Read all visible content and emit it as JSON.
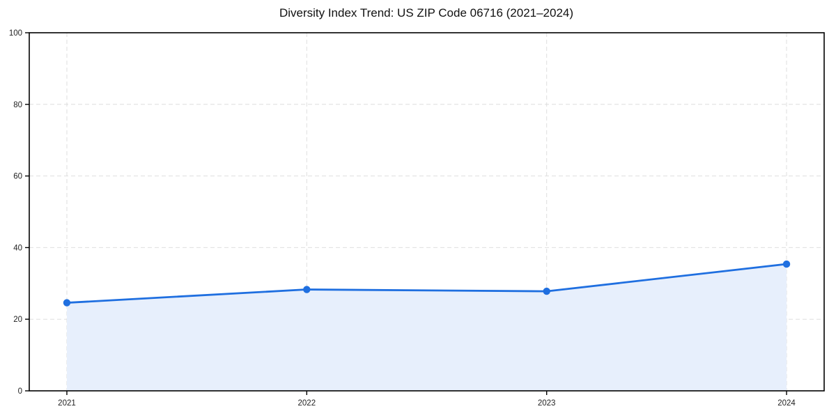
{
  "title": "Diversity Index Trend: US ZIP Code 06716 (2021–2024)",
  "colors": {
    "line": "#1f6fe0",
    "marker": "#1f6fe0",
    "area_fill": "#e7effc",
    "grid": "#dedede",
    "spine": "#000000",
    "tick_text": "#222222",
    "background": "#ffffff"
  },
  "chart_data": {
    "type": "line",
    "title": "Diversity Index Trend: US ZIP Code 06716 (2021–2024)",
    "x": [
      2021,
      2022,
      2023,
      2024
    ],
    "x_tick_labels": [
      "2021",
      "2022",
      "2023",
      "2024"
    ],
    "series": [
      {
        "name": "Diversity Index",
        "values": [
          24.6,
          28.3,
          27.8,
          35.4
        ]
      }
    ],
    "xlabel": "",
    "ylabel": "",
    "ylim": [
      0,
      100
    ],
    "y_ticks": [
      0,
      20,
      40,
      60,
      80,
      100
    ],
    "y_tick_labels": [
      "0",
      "20",
      "40",
      "60",
      "80",
      "100"
    ],
    "grid": true,
    "grid_style": "dashed",
    "area_fill": true,
    "marker": "circle",
    "legend_position": "none"
  }
}
